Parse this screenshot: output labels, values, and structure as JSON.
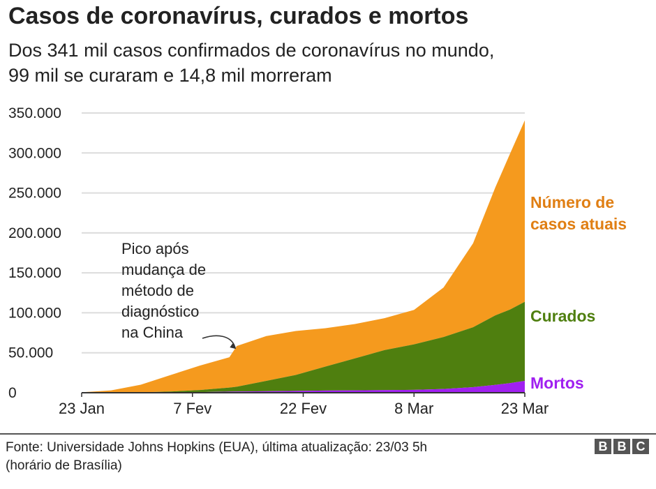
{
  "header": {
    "title": "Casos de coronavírus, curados e mortos",
    "subtitle_lines": [
      "Dos 341 mil casos confirmados de coronavírus no mundo,",
      "99 mil se curaram e 14,8 mil morreram"
    ]
  },
  "chart_data": {
    "type": "area",
    "stacked": true,
    "title": "Casos de coronavírus, curados e mortos",
    "subtitle": "Dos 341 mil casos confirmados de coronavírus no mundo, 99 mil se curaram e 14,8 mil morreram",
    "xlabel": "",
    "ylabel": "",
    "x_tick_labels": [
      "23 Jan",
      "7 Fev",
      "22 Fev",
      "8 Mar",
      "23 Mar"
    ],
    "y_tick_labels": [
      "0",
      "50.000",
      "100.000",
      "150.000",
      "200.000",
      "250.000",
      "300.000",
      "350.000"
    ],
    "y_ticks": [
      0,
      50000,
      100000,
      150000,
      200000,
      250000,
      300000,
      350000
    ],
    "ylim": [
      0,
      350000
    ],
    "xlim": [
      "2020-01-23",
      "2020-03-23"
    ],
    "grid": true,
    "legend_placement": "right of plot, labels at series ends",
    "x": [
      "2020-01-23",
      "2020-01-27",
      "2020-01-31",
      "2020-02-04",
      "2020-02-08",
      "2020-02-12",
      "2020-02-13",
      "2020-02-17",
      "2020-02-21",
      "2020-02-25",
      "2020-02-29",
      "2020-03-04",
      "2020-03-08",
      "2020-03-12",
      "2020-03-16",
      "2020-03-19",
      "2020-03-21",
      "2020-03-23"
    ],
    "series": [
      {
        "name": "Mortos",
        "color": "#a020f0",
        "values": [
          17,
          80,
          250,
          490,
          810,
          1370,
          1520,
          1870,
          2250,
          2700,
          2940,
          3300,
          3600,
          4700,
          7000,
          9800,
          12000,
          14800
        ]
      },
      {
        "name": "Curados",
        "color": "#4f7f0f",
        "values": [
          28,
          60,
          200,
          1000,
          2600,
          5100,
          6000,
          13000,
          20000,
          30000,
          40000,
          50000,
          57000,
          65000,
          75000,
          87000,
          92000,
          99000
        ]
      },
      {
        "name": "Número de casos atuais",
        "color": "#f59a1e",
        "values": [
          510,
          2800,
          9600,
          20500,
          30500,
          38000,
          51000,
          56000,
          55000,
          48000,
          43000,
          40000,
          43000,
          62000,
          105000,
          160000,
          195000,
          227000
        ]
      }
    ],
    "annotations": [
      {
        "text_lines": [
          "Pico após",
          "mudança de",
          "método de",
          "diagnóstico",
          "na China"
        ],
        "x": "2020-02-13"
      }
    ]
  },
  "footer": {
    "source_lines": [
      "Fonte: Universidade Johns Hopkins (EUA), última atualização: 23/03 5h",
      "(horário de Brasília)"
    ],
    "logo_letters": [
      "B",
      "B",
      "C"
    ]
  }
}
